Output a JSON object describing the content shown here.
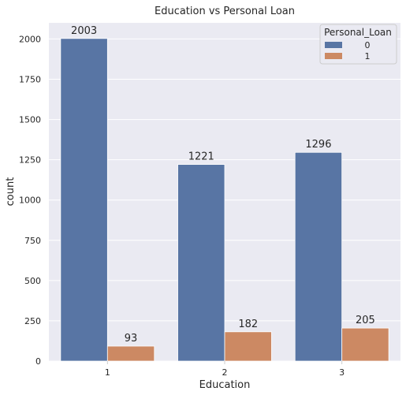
{
  "chart_data": {
    "type": "bar",
    "title": "Education vs Personal Loan",
    "xlabel": "Education",
    "ylabel": "count",
    "categories": [
      "1",
      "2",
      "3"
    ],
    "ylim": [
      0,
      2100
    ],
    "yticks": [
      0,
      250,
      500,
      750,
      1000,
      1250,
      1500,
      1750,
      2000
    ],
    "grid": true,
    "legend": {
      "title": "Personal_Loan",
      "placement": "top-right"
    },
    "series": [
      {
        "name": "0",
        "values": [
          2003,
          1221,
          1296
        ],
        "color": "#5875a4"
      },
      {
        "name": "1",
        "values": [
          93,
          182,
          205
        ],
        "color": "#cc8963"
      }
    ],
    "background": "#eaeaf2"
  }
}
